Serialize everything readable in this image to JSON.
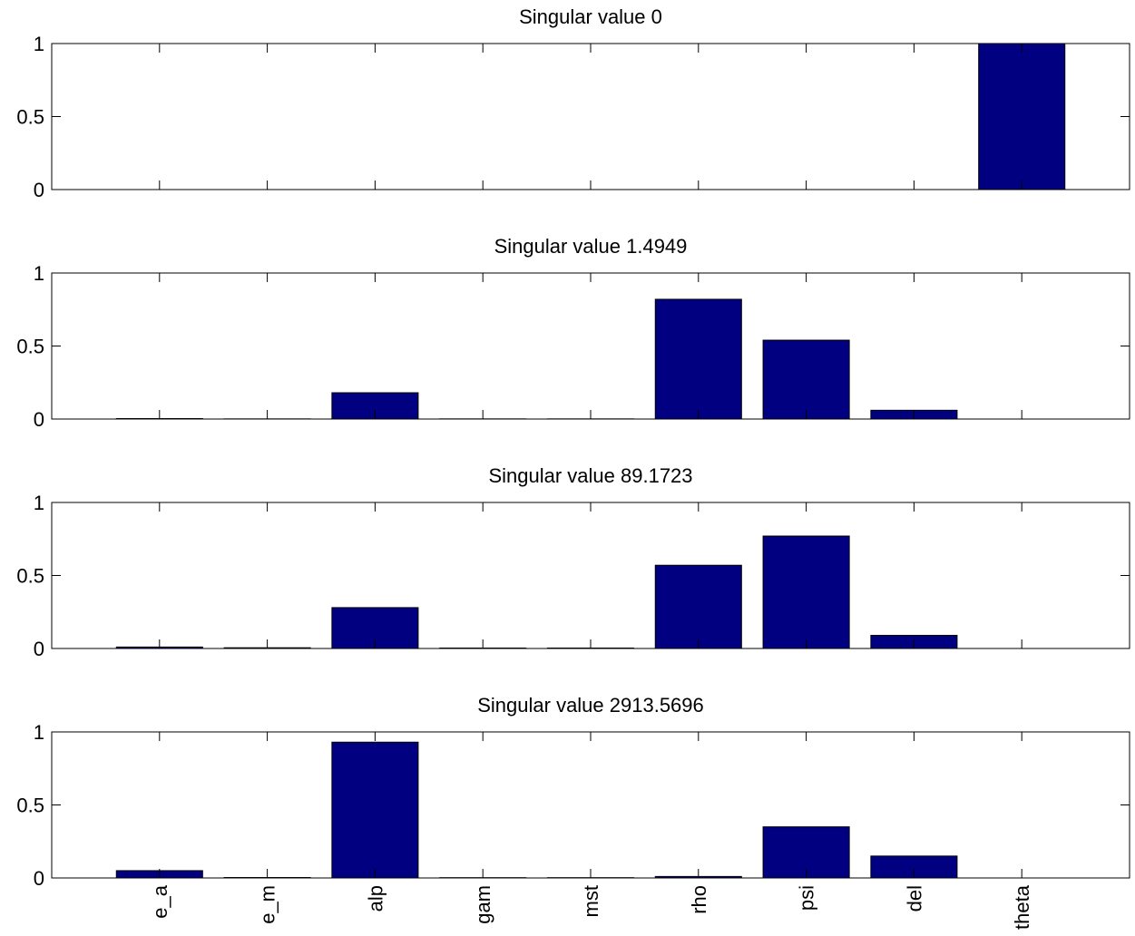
{
  "chart_data": [
    {
      "type": "bar",
      "title": "Singular value 0",
      "categories": [
        null,
        null,
        null,
        null,
        null,
        null,
        null,
        null,
        null
      ],
      "values": [
        0,
        0,
        0,
        0,
        0,
        0,
        0,
        0,
        1
      ],
      "color": "#000080",
      "ylim": [
        0,
        1
      ],
      "yticks": [
        0,
        0.5,
        1
      ]
    },
    {
      "type": "bar",
      "title": "Singular value 1.4949",
      "categories": [
        null,
        null,
        null,
        null,
        null,
        null,
        null,
        null,
        null
      ],
      "values": [
        0.003,
        0.001,
        0.18,
        0.001,
        0.001,
        0.82,
        0.54,
        0.06,
        0
      ],
      "color": "#000080",
      "ylim": [
        0,
        1
      ],
      "yticks": [
        0,
        0.5,
        1
      ]
    },
    {
      "type": "bar",
      "title": "Singular value 89.1723",
      "categories": [
        null,
        null,
        null,
        null,
        null,
        null,
        null,
        null,
        null
      ],
      "values": [
        0.01,
        0.005,
        0.28,
        0.003,
        0.003,
        0.57,
        0.77,
        0.09,
        0
      ],
      "color": "#000080",
      "ylim": [
        0,
        1
      ],
      "yticks": [
        0,
        0.5,
        1
      ]
    },
    {
      "type": "bar",
      "title": "Singular value 2913.5696",
      "categories": [
        "e_a",
        "e_m",
        "alp",
        "gam",
        "mst",
        "rho",
        "psi",
        "del",
        "theta"
      ],
      "values": [
        0.05,
        0.003,
        0.93,
        0.002,
        0.002,
        0.01,
        0.35,
        0.15,
        0
      ],
      "color": "#000080",
      "ylim": [
        0,
        1
      ],
      "yticks": [
        0,
        0.5,
        1
      ]
    }
  ]
}
